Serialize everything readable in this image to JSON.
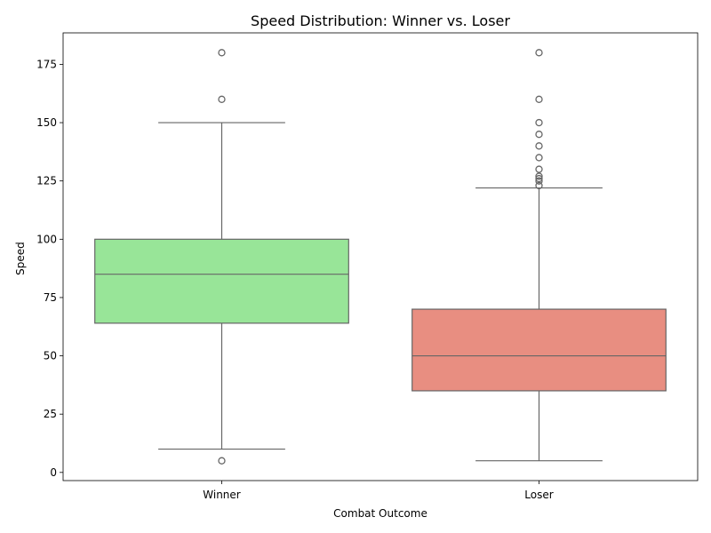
{
  "chart_data": {
    "type": "box",
    "title": "Speed Distribution: Winner vs. Loser",
    "xlabel": "Combat Outcome",
    "ylabel": "Speed",
    "ylim": [
      -3.5,
      188.5
    ],
    "yticks": [
      0,
      25,
      50,
      75,
      100,
      125,
      150,
      175
    ],
    "grid": false,
    "categories": [
      "Winner",
      "Loser"
    ],
    "boxes": [
      {
        "category": "Winner",
        "color": "#98e598",
        "whisker_low": 10,
        "q1": 64,
        "median": 85,
        "q3": 100,
        "whisker_high": 150,
        "outliers": [
          5,
          160,
          180
        ]
      },
      {
        "category": "Loser",
        "color": "#e88e81",
        "whisker_low": 5,
        "q1": 35,
        "median": 50,
        "q3": 70,
        "whisker_high": 122,
        "outliers": [
          123,
          125,
          126,
          127,
          130,
          135,
          140,
          145,
          150,
          160,
          180
        ]
      }
    ],
    "line_color": "#666666"
  }
}
